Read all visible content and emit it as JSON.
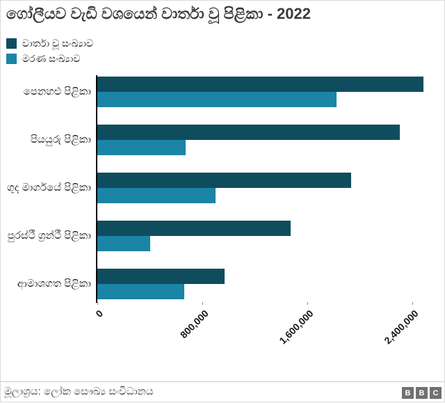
{
  "title": "ගෝලීයව වැඩි වශයෙන් වාර්තා වූ පිළිකා - 2022",
  "legend": [
    {
      "label": "වාර්තා වූ සංඛ්‍යාව",
      "color": "#0f4d5e"
    },
    {
      "label": "මරණ සංඛ්‍යාව",
      "color": "#1a85a6"
    }
  ],
  "chart_data": {
    "type": "bar",
    "orientation": "horizontal",
    "title": "ගෝලීයව වැඩි වශයෙන් වාර්තා වූ පිළිකා - 2022",
    "categories": [
      "පෙනහළු පිළිකා",
      "පියයුරු පිළිකා",
      "ගුද මාර්ගයේ පිළිකා",
      "පුරස්ථී ග්‍රන්ථී පිළිකා",
      "ආමාශගත පිළිකා"
    ],
    "series": [
      {
        "name": "වාර්තා වූ සංඛ්‍යාව",
        "color": "#0f4d5e",
        "values": [
          2480000,
          2300000,
          1930000,
          1470000,
          970000
        ]
      },
      {
        "name": "මරණ සංඛ්‍යාව",
        "color": "#1a85a6",
        "values": [
          1820000,
          670000,
          900000,
          400000,
          660000
        ]
      }
    ],
    "xticks": [
      0,
      800000,
      1600000,
      2400000
    ],
    "xtick_labels": [
      "0",
      "800,000",
      "1,600,000",
      "2,400,000"
    ],
    "xlim": [
      0,
      2620000
    ],
    "grid": false,
    "legend_position": "top-left"
  },
  "colors": {
    "reported_bar": "#0f4d5e",
    "deaths_bar": "#1a85a6",
    "axis_line": "#000000",
    "title_text": "#3a3a3a",
    "footer_text": "#4a4a4a",
    "bbc_block": "#717171",
    "divider": "#c9c9c9"
  },
  "footer": {
    "source": "මූලාශ්‍රය: ලෝක සෞඛ්‍ය සංවිධානය",
    "logo_letters": [
      "B",
      "B",
      "C"
    ]
  }
}
